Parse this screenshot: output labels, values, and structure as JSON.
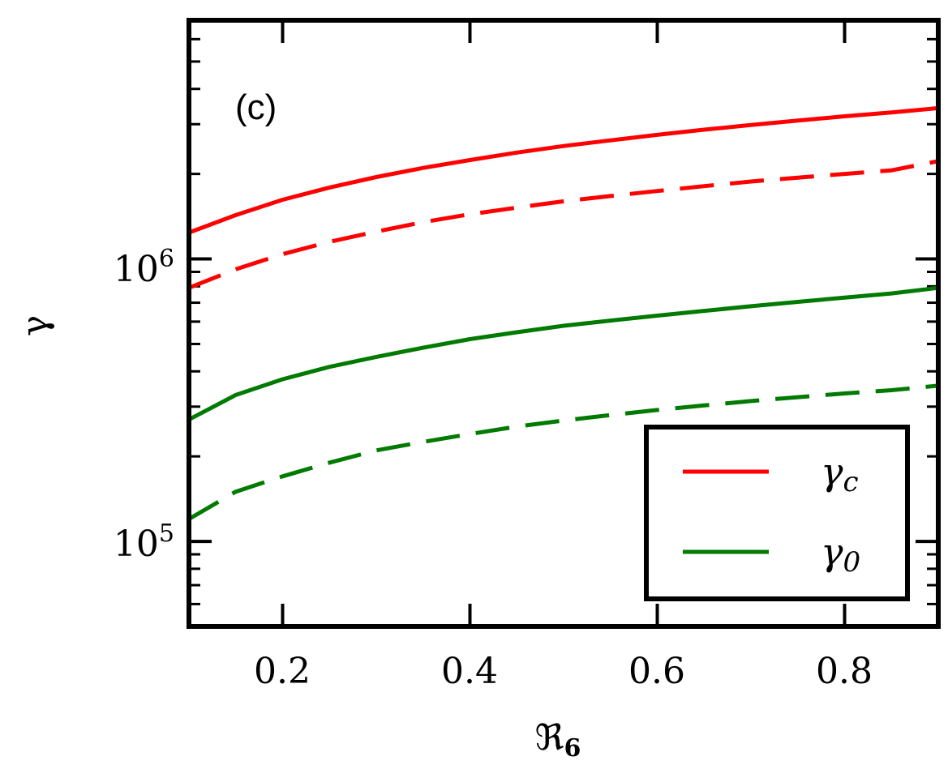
{
  "chart_data": {
    "type": "line",
    "panel_label": "(c)",
    "xlabel": "ℜ",
    "xlabel_sub": "6",
    "ylabel": "γ",
    "xlim": [
      0.1,
      0.9
    ],
    "ylim": [
      50000,
      7000000
    ],
    "yscale": "log",
    "x_ticks": [
      0.2,
      0.4,
      0.6,
      0.8
    ],
    "x_tick_labels": [
      "0.2",
      "0.4",
      "0.6",
      "0.8"
    ],
    "y_ticks": [
      {
        "value": 100000,
        "base": "10",
        "exp": "5"
      },
      {
        "value": 1000000,
        "base": "10",
        "exp": "6"
      }
    ],
    "x": [
      0.1,
      0.15,
      0.2,
      0.25,
      0.3,
      0.35,
      0.4,
      0.45,
      0.5,
      0.55,
      0.6,
      0.65,
      0.7,
      0.75,
      0.8,
      0.85,
      0.9
    ],
    "series": [
      {
        "name": "γ_c solid",
        "color": "#ff0000",
        "dash": "solid",
        "values": [
          1240000,
          1430000,
          1620000,
          1790000,
          1950000,
          2100000,
          2240000,
          2380000,
          2510000,
          2630000,
          2750000,
          2870000,
          2980000,
          3090000,
          3200000,
          3300000,
          3420000
        ]
      },
      {
        "name": "γ_c dashed",
        "color": "#ff0000",
        "dash": "dashed",
        "values": [
          790000,
          920000,
          1040000,
          1150000,
          1250000,
          1350000,
          1440000,
          1520000,
          1600000,
          1670000,
          1740000,
          1810000,
          1880000,
          1940000,
          2000000,
          2060000,
          2220000
        ]
      },
      {
        "name": "γ_0 solid",
        "color": "#007a00",
        "dash": "solid",
        "values": [
          270000,
          330000,
          375000,
          415000,
          450000,
          485000,
          520000,
          550000,
          580000,
          605000,
          630000,
          655000,
          680000,
          705000,
          730000,
          755000,
          790000
        ]
      },
      {
        "name": "γ_0 dashed",
        "color": "#007a00",
        "dash": "dashed",
        "values": [
          120000,
          150000,
          170000,
          190000,
          210000,
          225000,
          240000,
          255000,
          268000,
          280000,
          292000,
          303000,
          314000,
          324000,
          334000,
          343000,
          356000
        ]
      }
    ],
    "legend": {
      "location": "lower-right",
      "entries": [
        {
          "label": "γ",
          "sub": "c",
          "color": "#ff0000"
        },
        {
          "label": "γ",
          "sub": "0",
          "color": "#007a00"
        }
      ]
    }
  }
}
